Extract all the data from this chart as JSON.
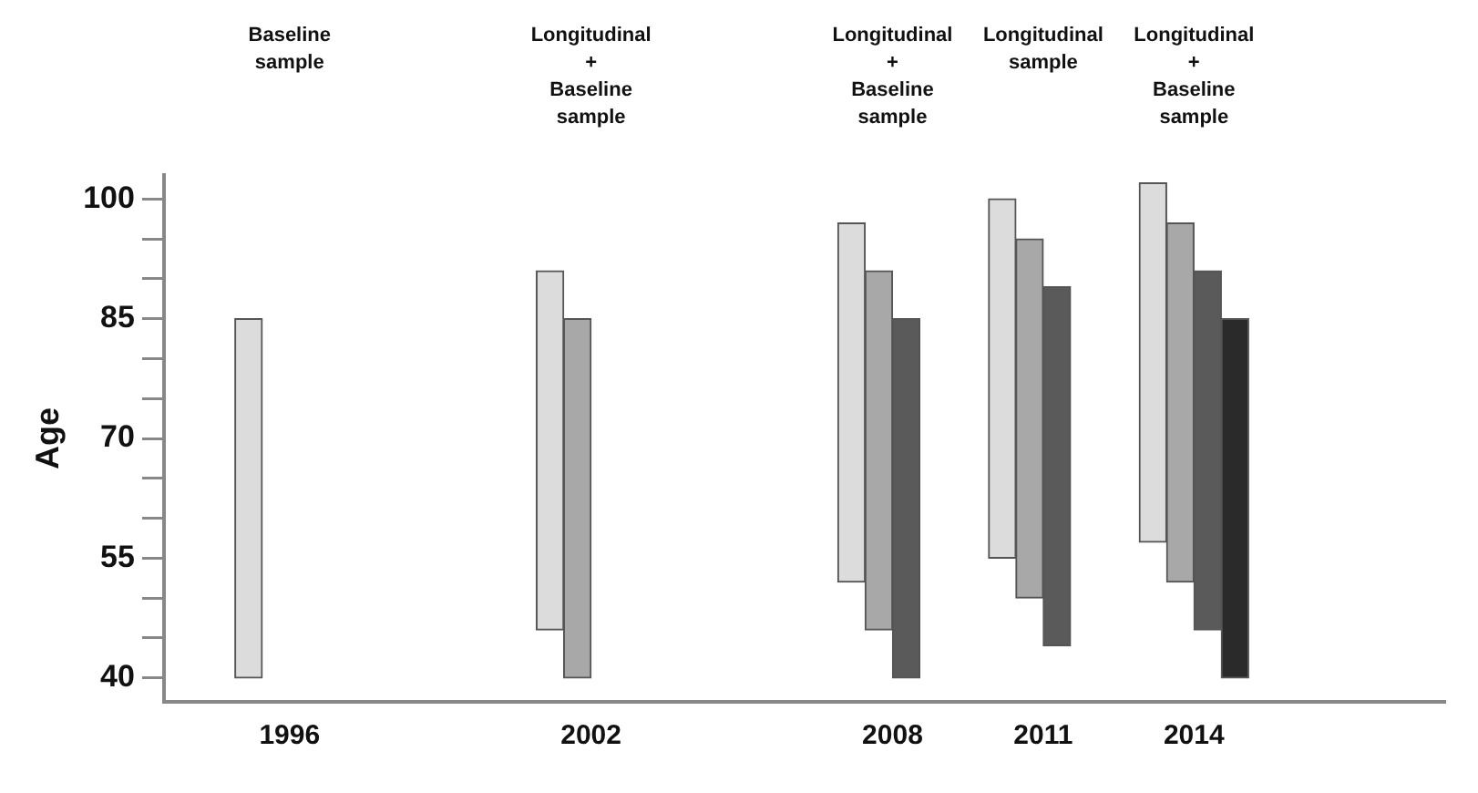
{
  "chart_data": {
    "type": "bar",
    "ylabel": "Age",
    "x": [
      1996,
      2002,
      2008,
      2011,
      2014
    ],
    "xlim": [
      1993.5,
      2019
    ],
    "xticks": [
      1996,
      2002,
      2008,
      2011,
      2014
    ],
    "ylim": [
      37,
      103
    ],
    "yticks": [
      40,
      {
        "value": 45,
        "label": null
      },
      {
        "value": 50,
        "label": null
      },
      55,
      {
        "value": 60,
        "label": null
      },
      {
        "value": 65,
        "label": null
      },
      70,
      {
        "value": 75,
        "label": null
      },
      {
        "value": 80,
        "label": null
      },
      85,
      {
        "value": 90,
        "label": null
      },
      {
        "value": 95,
        "label": null
      },
      100
    ],
    "series": [
      {
        "color": "#dcdcdc",
        "values": [
          45,
          45,
          45,
          45,
          45
        ],
        "base": [
          40,
          46,
          52,
          55,
          57
        ]
      },
      {
        "color": "#a8a8a8",
        "values": [
          null,
          45,
          45,
          45,
          45
        ],
        "base": [
          null,
          40,
          46,
          50,
          52
        ]
      },
      {
        "color": "#5a5a5a",
        "values": [
          null,
          null,
          45,
          45,
          45
        ],
        "base": [
          null,
          null,
          40,
          44,
          46
        ]
      },
      {
        "color": "#2a2a2a",
        "values": [
          null,
          null,
          null,
          null,
          45
        ],
        "base": [
          null,
          null,
          null,
          null,
          40
        ]
      }
    ],
    "annotations": [
      "Baseline sample",
      "Longitudinal + Baseline sample",
      "Longitudinal + Baseline sample",
      "Longitudinal sample",
      "Longitudinal + Baseline sample"
    ],
    "grid": false,
    "legend": false
  }
}
